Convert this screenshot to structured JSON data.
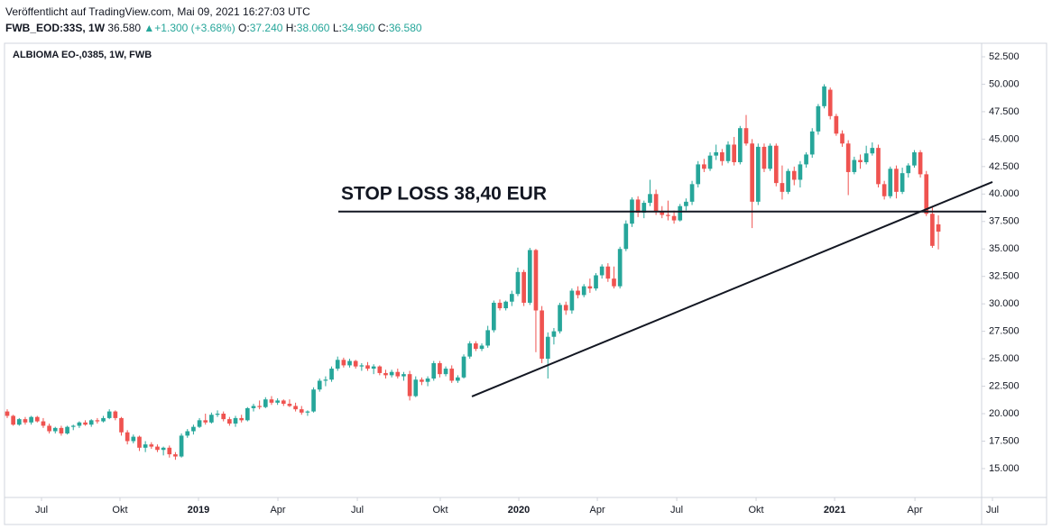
{
  "header": {
    "published": "Veröffentlicht auf TradingView.com, Mai 09, 2021 16:27:03 UTC",
    "symbol": "FWB_EOD:33S, 1W",
    "last": "36.580",
    "arrow": "▲",
    "change": "+1.300 (+3.68%)",
    "o_label": "O:",
    "o": "37.240",
    "h_label": "H:",
    "h": "38.060",
    "l_label": "L:",
    "l": "34.960",
    "c_label": "C:",
    "c": "36.580"
  },
  "chart_data": {
    "type": "candlestick",
    "title": "ALBIOMA EO-,0385, 1W, FWB",
    "up_color": "#26a69a",
    "down_color": "#ef5350",
    "xlim": [
      -0.45,
      162.2
    ],
    "ylim": [
      12.37,
      53.73
    ],
    "xticks": [
      {
        "value": 5.71,
        "label": "Jul"
      },
      {
        "value": 18.77,
        "label": "Okt"
      },
      {
        "value": 31.84,
        "label": "2019"
      },
      {
        "value": 45.06,
        "label": "Apr"
      },
      {
        "value": 58.28,
        "label": "Jul"
      },
      {
        "value": 72.09,
        "label": "Okt"
      },
      {
        "value": 85.16,
        "label": "2020"
      },
      {
        "value": 98.23,
        "label": "Apr"
      },
      {
        "value": 111.45,
        "label": "Jul"
      },
      {
        "value": 124.66,
        "label": "Okt"
      },
      {
        "value": 137.73,
        "label": "2021"
      },
      {
        "value": 151.1,
        "label": "Apr"
      },
      {
        "value": 164.0,
        "label": "Jul"
      }
    ],
    "yticks": [
      {
        "value": 15,
        "label": "15.000"
      },
      {
        "value": 17.5,
        "label": "17.500"
      },
      {
        "value": 20,
        "label": "20.000"
      },
      {
        "value": 22.5,
        "label": "22.500"
      },
      {
        "value": 25,
        "label": "25.000"
      },
      {
        "value": 27.5,
        "label": "27.500"
      },
      {
        "value": 30,
        "label": "30.000"
      },
      {
        "value": 32.5,
        "label": "32.500"
      },
      {
        "value": 35,
        "label": "35.000"
      },
      {
        "value": 37.5,
        "label": "37.500"
      },
      {
        "value": 40,
        "label": "40.000"
      },
      {
        "value": 42.5,
        "label": "42.500"
      },
      {
        "value": 45,
        "label": "45.000"
      },
      {
        "value": 47.5,
        "label": "47.500"
      },
      {
        "value": 50,
        "label": "50.000"
      },
      {
        "value": 52.5,
        "label": "52.500"
      }
    ],
    "stop_loss": {
      "label": "STOP LOSS 38,40 EUR",
      "value": 38.4,
      "x": [
        55.12,
        162.96
      ]
    },
    "trendline": {
      "x": [
        77.35,
        164.0
      ],
      "y": [
        21.57,
        41.1
      ]
    },
    "ohlc": [
      [
        20.2,
        20.4,
        19.6,
        19.8
      ],
      [
        19.8,
        19.9,
        18.9,
        19.0
      ],
      [
        19.0,
        19.6,
        18.9,
        19.5
      ],
      [
        19.5,
        19.7,
        19.0,
        19.2
      ],
      [
        19.2,
        19.8,
        19.0,
        19.7
      ],
      [
        19.7,
        19.8,
        19.2,
        19.3
      ],
      [
        19.3,
        19.6,
        18.7,
        18.9
      ],
      [
        18.9,
        19.1,
        18.2,
        18.4
      ],
      [
        18.4,
        18.8,
        18.2,
        18.7
      ],
      [
        18.7,
        18.9,
        18.0,
        18.2
      ],
      [
        18.2,
        18.9,
        18.1,
        18.8
      ],
      [
        18.8,
        19.0,
        18.5,
        18.9
      ],
      [
        18.9,
        19.3,
        18.7,
        19.2
      ],
      [
        19.2,
        19.4,
        18.9,
        19.0
      ],
      [
        19.0,
        19.5,
        18.8,
        19.4
      ],
      [
        19.4,
        19.6,
        19.1,
        19.3
      ],
      [
        19.3,
        19.8,
        19.2,
        19.6
      ],
      [
        19.6,
        20.4,
        19.5,
        20.2
      ],
      [
        20.2,
        20.3,
        19.4,
        19.6
      ],
      [
        19.6,
        19.7,
        18.0,
        18.3
      ],
      [
        18.3,
        18.5,
        17.2,
        17.5
      ],
      [
        17.5,
        18.1,
        17.3,
        17.9
      ],
      [
        17.9,
        18.0,
        16.6,
        16.9
      ],
      [
        16.9,
        17.5,
        16.5,
        17.2
      ],
      [
        17.2,
        17.4,
        16.8,
        17.0
      ],
      [
        17.0,
        17.2,
        16.5,
        16.7
      ],
      [
        16.7,
        17.0,
        16.2,
        16.9
      ],
      [
        16.9,
        17.1,
        16.0,
        16.3
      ],
      [
        16.3,
        16.5,
        15.8,
        16.1
      ],
      [
        16.1,
        18.2,
        16.0,
        18.0
      ],
      [
        18.0,
        18.6,
        17.8,
        18.4
      ],
      [
        18.4,
        19.0,
        18.1,
        18.8
      ],
      [
        18.8,
        19.6,
        18.7,
        19.4
      ],
      [
        19.4,
        20.0,
        19.0,
        19.2
      ],
      [
        19.2,
        20.1,
        19.1,
        19.9
      ],
      [
        19.9,
        20.3,
        19.7,
        20.0
      ],
      [
        20.0,
        20.2,
        19.3,
        19.5
      ],
      [
        19.5,
        19.7,
        18.9,
        19.1
      ],
      [
        19.1,
        19.8,
        18.8,
        19.6
      ],
      [
        19.6,
        19.9,
        19.2,
        19.4
      ],
      [
        19.4,
        20.6,
        19.3,
        20.5
      ],
      [
        20.5,
        20.9,
        20.2,
        20.7
      ],
      [
        20.7,
        21.2,
        20.4,
        20.6
      ],
      [
        20.6,
        21.5,
        20.5,
        21.3
      ],
      [
        21.3,
        21.6,
        20.8,
        21.0
      ],
      [
        21.0,
        21.4,
        20.8,
        21.2
      ],
      [
        21.2,
        21.3,
        20.7,
        20.9
      ],
      [
        20.9,
        21.3,
        20.6,
        20.7
      ],
      [
        20.7,
        21.0,
        20.2,
        20.4
      ],
      [
        20.4,
        20.7,
        19.9,
        20.1
      ],
      [
        20.1,
        20.3,
        19.8,
        20.2
      ],
      [
        20.2,
        22.4,
        20.1,
        22.2
      ],
      [
        22.2,
        23.2,
        22.0,
        23.0
      ],
      [
        23.0,
        23.4,
        22.5,
        23.1
      ],
      [
        23.1,
        24.3,
        22.9,
        24.1
      ],
      [
        24.1,
        25.2,
        23.9,
        24.9
      ],
      [
        24.9,
        25.1,
        24.2,
        24.4
      ],
      [
        24.4,
        25.0,
        24.2,
        24.8
      ],
      [
        24.8,
        24.9,
        24.1,
        24.3
      ],
      [
        24.3,
        24.6,
        23.9,
        24.4
      ],
      [
        24.4,
        24.7,
        23.9,
        24.1
      ],
      [
        24.1,
        24.5,
        23.6,
        24.3
      ],
      [
        24.3,
        24.4,
        23.5,
        23.7
      ],
      [
        23.7,
        24.0,
        23.2,
        23.5
      ],
      [
        23.5,
        24.0,
        23.3,
        23.8
      ],
      [
        23.8,
        24.1,
        23.2,
        23.4
      ],
      [
        23.4,
        23.8,
        23.0,
        23.6
      ],
      [
        23.6,
        23.9,
        21.2,
        21.6
      ],
      [
        21.6,
        23.4,
        21.5,
        23.1
      ],
      [
        23.1,
        23.3,
        22.6,
        22.9
      ],
      [
        22.9,
        23.4,
        22.5,
        23.2
      ],
      [
        23.2,
        24.8,
        23.0,
        24.6
      ],
      [
        24.6,
        24.8,
        23.3,
        23.6
      ],
      [
        23.6,
        24.3,
        23.4,
        24.1
      ],
      [
        24.1,
        24.4,
        22.8,
        23.0
      ],
      [
        23.0,
        23.5,
        22.8,
        23.3
      ],
      [
        23.3,
        25.4,
        23.2,
        25.2
      ],
      [
        25.2,
        26.6,
        25.0,
        26.4
      ],
      [
        26.4,
        26.6,
        25.7,
        25.9
      ],
      [
        25.9,
        26.4,
        25.7,
        26.2
      ],
      [
        26.2,
        28.0,
        26.0,
        27.6
      ],
      [
        27.6,
        30.3,
        27.4,
        30.1
      ],
      [
        30.1,
        30.4,
        29.4,
        29.6
      ],
      [
        29.6,
        30.3,
        29.4,
        30.2
      ],
      [
        30.2,
        31.2,
        29.8,
        30.9
      ],
      [
        30.9,
        33.3,
        30.7,
        32.9
      ],
      [
        32.9,
        33.1,
        29.8,
        30.1
      ],
      [
        30.1,
        35.1,
        29.9,
        34.9
      ],
      [
        34.9,
        35.0,
        25.6,
        29.4
      ],
      [
        29.4,
        29.8,
        24.6,
        25.0
      ],
      [
        25.0,
        27.4,
        23.2,
        27.0
      ],
      [
        27.0,
        27.8,
        26.3,
        27.5
      ],
      [
        27.5,
        30.1,
        27.3,
        29.9
      ],
      [
        29.9,
        30.2,
        29.0,
        29.4
      ],
      [
        29.4,
        31.4,
        29.1,
        31.2
      ],
      [
        31.2,
        31.6,
        30.5,
        30.8
      ],
      [
        30.8,
        31.8,
        30.6,
        31.6
      ],
      [
        31.6,
        32.3,
        31.0,
        31.4
      ],
      [
        31.4,
        32.8,
        31.2,
        32.6
      ],
      [
        32.6,
        33.6,
        32.3,
        33.4
      ],
      [
        33.4,
        33.7,
        32.0,
        32.3
      ],
      [
        32.3,
        33.4,
        31.4,
        31.6
      ],
      [
        31.6,
        35.2,
        31.4,
        35.0
      ],
      [
        35.0,
        37.6,
        34.8,
        37.3
      ],
      [
        37.3,
        39.7,
        37.0,
        39.5
      ],
      [
        39.5,
        39.8,
        37.9,
        38.3
      ],
      [
        38.3,
        39.4,
        37.8,
        39.2
      ],
      [
        39.2,
        41.3,
        38.9,
        40.0
      ],
      [
        40.0,
        40.4,
        38.1,
        38.4
      ],
      [
        38.4,
        38.9,
        37.8,
        38.1
      ],
      [
        38.1,
        39.4,
        37.6,
        38.0
      ],
      [
        38.0,
        38.5,
        37.3,
        37.6
      ],
      [
        37.6,
        39.1,
        37.5,
        38.9
      ],
      [
        38.9,
        39.6,
        38.5,
        39.3
      ],
      [
        39.3,
        41.2,
        39.0,
        40.9
      ],
      [
        40.9,
        43.0,
        40.6,
        42.7
      ],
      [
        42.7,
        43.2,
        42.0,
        42.3
      ],
      [
        42.3,
        43.8,
        42.1,
        43.5
      ],
      [
        43.5,
        44.5,
        43.1,
        43.8
      ],
      [
        43.8,
        44.1,
        42.6,
        43.0
      ],
      [
        43.0,
        44.8,
        42.8,
        44.5
      ],
      [
        44.5,
        45.2,
        42.6,
        42.9
      ],
      [
        42.9,
        46.2,
        42.7,
        46.0
      ],
      [
        46.0,
        47.2,
        44.4,
        44.6
      ],
      [
        44.6,
        45.0,
        36.9,
        39.3
      ],
      [
        39.3,
        44.6,
        39.0,
        44.3
      ],
      [
        44.3,
        44.6,
        42.0,
        42.3
      ],
      [
        42.3,
        44.6,
        42.1,
        44.4
      ],
      [
        44.4,
        44.6,
        40.7,
        41.0
      ],
      [
        41.0,
        42.6,
        39.5,
        40.2
      ],
      [
        40.2,
        42.3,
        40.0,
        42.1
      ],
      [
        42.1,
        42.5,
        40.8,
        41.3
      ],
      [
        41.3,
        43.0,
        40.6,
        42.7
      ],
      [
        42.7,
        43.8,
        42.4,
        43.6
      ],
      [
        43.6,
        46.0,
        43.3,
        45.7
      ],
      [
        45.7,
        48.2,
        45.4,
        48.0
      ],
      [
        48.0,
        50.0,
        47.8,
        49.8
      ],
      [
        49.5,
        49.7,
        46.8,
        47.1
      ],
      [
        47.1,
        47.3,
        45.3,
        45.5
      ],
      [
        45.5,
        45.8,
        44.3,
        44.6
      ],
      [
        44.6,
        44.9,
        39.9,
        42.0
      ],
      [
        42.0,
        43.4,
        41.8,
        43.1
      ],
      [
        43.1,
        43.6,
        42.3,
        42.9
      ],
      [
        42.9,
        44.4,
        42.7,
        43.7
      ],
      [
        43.7,
        44.7,
        43.5,
        44.2
      ],
      [
        44.2,
        44.5,
        40.6,
        40.9
      ],
      [
        40.9,
        41.2,
        39.5,
        39.8
      ],
      [
        39.8,
        42.5,
        39.6,
        42.3
      ],
      [
        42.3,
        42.6,
        39.6,
        40.2
      ],
      [
        40.2,
        42.4,
        40.0,
        41.9
      ],
      [
        41.9,
        42.8,
        41.5,
        42.6
      ],
      [
        42.6,
        44.0,
        42.4,
        43.8
      ],
      [
        43.8,
        44.0,
        41.5,
        41.8
      ],
      [
        41.8,
        42.1,
        38.0,
        38.2
      ],
      [
        38.2,
        38.9,
        35.1,
        35.28
      ],
      [
        37.24,
        38.06,
        34.96,
        36.58
      ]
    ]
  }
}
